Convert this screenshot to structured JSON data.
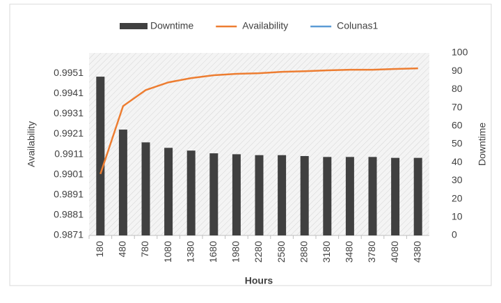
{
  "chart_data": {
    "type": "combo",
    "x_label": "Hours",
    "y_label": "Availability",
    "y2_label": "Downtime",
    "categories": [
      "180",
      "480",
      "780",
      "1080",
      "1380",
      "1680",
      "1980",
      "2280",
      "2580",
      "2880",
      "3180",
      "3480",
      "3780",
      "4080",
      "4380"
    ],
    "series": [
      {
        "name": "Downtime",
        "type": "bar",
        "axis": "y2",
        "color": "#404040",
        "values": [
          87,
          58,
          51,
          48,
          46.5,
          45,
          44.5,
          44,
          44,
          43.5,
          43,
          43,
          43,
          42.5,
          42.5
        ]
      },
      {
        "name": "Availability",
        "type": "line",
        "axis": "y",
        "color": "#ed7d31",
        "values": [
          0.99013,
          0.99348,
          0.99427,
          0.99465,
          0.99486,
          0.995,
          0.99507,
          0.9951,
          0.99517,
          0.9952,
          0.99524,
          0.99527,
          0.99527,
          0.99531,
          0.99534
        ]
      },
      {
        "name": "Colunas1",
        "type": "line",
        "axis": "y",
        "color": "#5b9bd5",
        "values": [
          null,
          null,
          null,
          null,
          null,
          null,
          null,
          null,
          null,
          null,
          null,
          null,
          null,
          null,
          null
        ]
      }
    ],
    "ylim": [
      0.9871,
      0.9961
    ],
    "yticks": [
      0.9871,
      0.9881,
      0.9891,
      0.9901,
      0.9911,
      0.9921,
      0.9931,
      0.9941,
      0.9951
    ],
    "y2lim": [
      0,
      100
    ],
    "y2ticks": [
      0,
      10,
      20,
      30,
      40,
      50,
      60,
      70,
      80,
      90,
      100
    ],
    "legend": "top"
  }
}
